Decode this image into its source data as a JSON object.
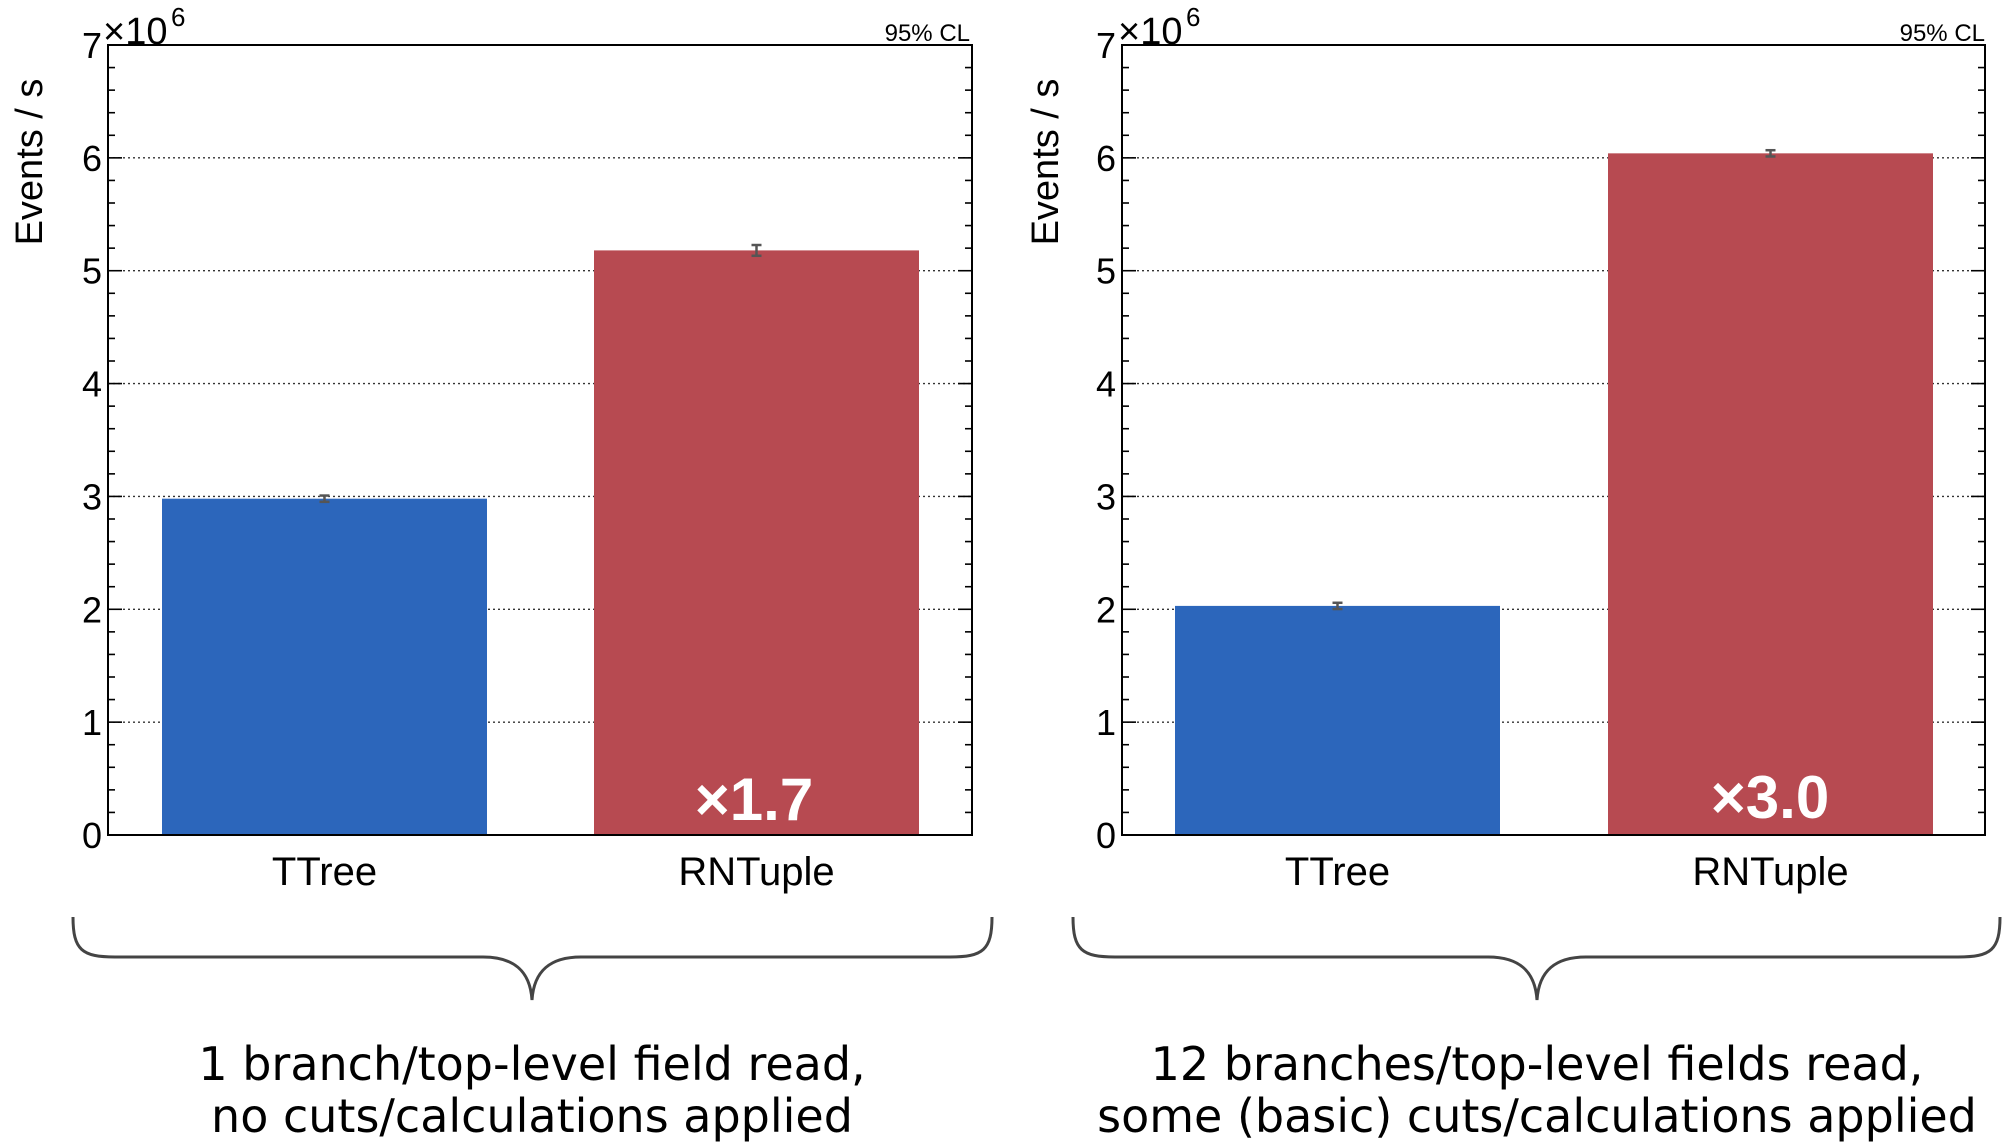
{
  "colors": {
    "ttree": "#2c66bb",
    "rntuple": "#b74a51",
    "error_bar": "#555555",
    "brace": "#444444"
  },
  "panels": [
    {
      "ylabel": "Events / s",
      "multiplier_base": "×10",
      "multiplier_exp": "6",
      "cl_label": "95% CL",
      "speedup_label": "×1.7",
      "caption_line1": "1 branch/top-level field read,",
      "caption_line2": "no cuts/calculations applied"
    },
    {
      "ylabel": "Events / s",
      "multiplier_base": "×10",
      "multiplier_exp": "6",
      "cl_label": "95% CL",
      "speedup_label": "×3.0",
      "caption_line1": "12 branches/top-level fields read,",
      "caption_line2": "some (basic) cuts/calculations applied"
    }
  ],
  "chart_data": [
    {
      "type": "bar",
      "categories": [
        "TTree",
        "RNTuple"
      ],
      "values": [
        2.98,
        5.18
      ],
      "errors": [
        0.01,
        0.03
      ],
      "units_scale": 1000000,
      "ylabel": "Events / s",
      "ylim": [
        0,
        7
      ],
      "yticks": [
        "0",
        "1",
        "2",
        "3",
        "4",
        "5",
        "6",
        "7"
      ],
      "grid": true,
      "annotations": [
        "95% CL",
        "×1.7"
      ]
    },
    {
      "type": "bar",
      "categories": [
        "TTree",
        "RNTuple"
      ],
      "values": [
        2.03,
        6.04
      ],
      "errors": [
        0.01,
        0.01
      ],
      "units_scale": 1000000,
      "ylabel": "Events / s",
      "ylim": [
        0,
        7
      ],
      "yticks": [
        "0",
        "1",
        "2",
        "3",
        "4",
        "5",
        "6",
        "7"
      ],
      "grid": true,
      "annotations": [
        "95% CL",
        "×3.0"
      ]
    }
  ]
}
